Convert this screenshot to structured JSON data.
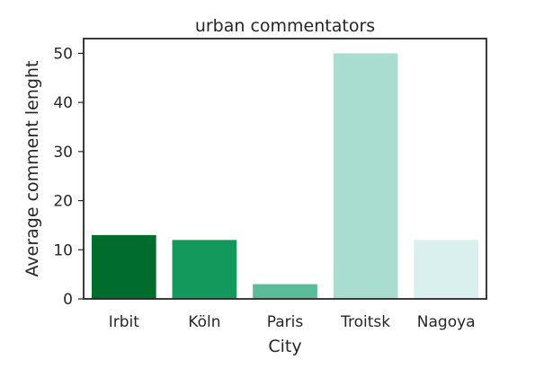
{
  "chart_data": {
    "type": "bar",
    "title": "urban commentators",
    "xlabel": "City",
    "ylabel": "Average comment lenght",
    "categories": [
      "Irbit",
      "Köln",
      "Paris",
      "Troitsk",
      "Nagoya"
    ],
    "values": [
      13,
      12,
      3,
      50,
      12
    ],
    "colors": [
      "#006d2c",
      "#12995b",
      "#5abc98",
      "#a8ddd0",
      "#d9f0ee"
    ],
    "ylim": [
      0,
      53
    ],
    "yticks": [
      0,
      10,
      20,
      30,
      40,
      50
    ],
    "grid": false,
    "legend": "none"
  }
}
